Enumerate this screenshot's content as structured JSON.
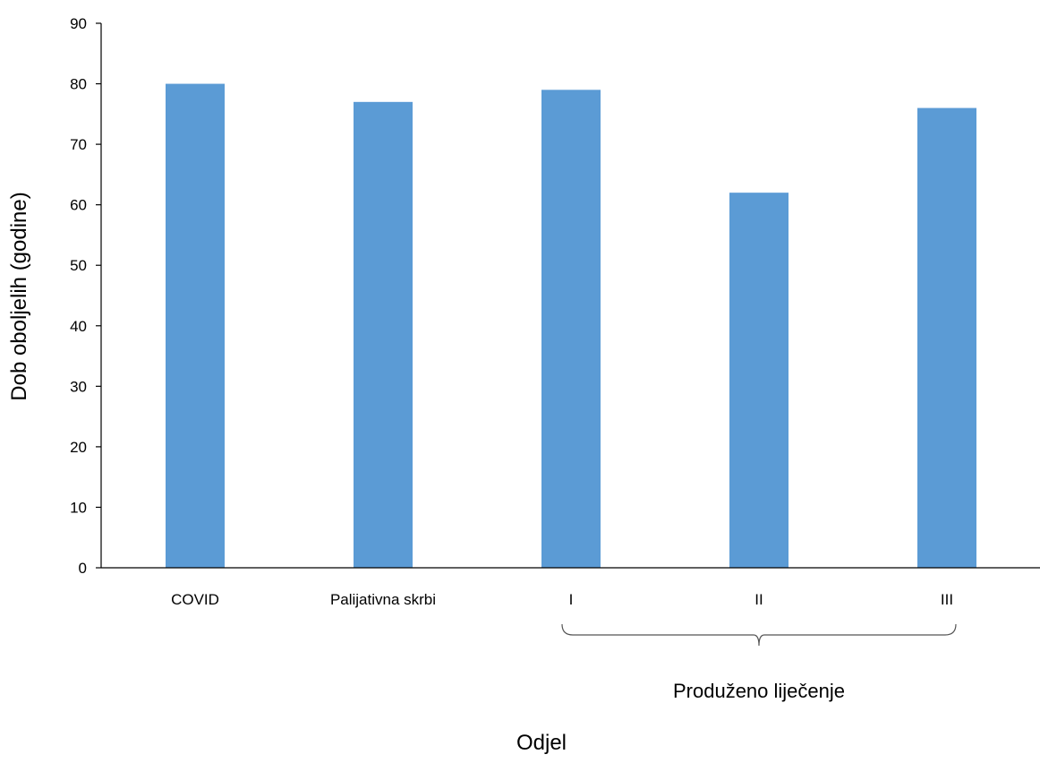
{
  "chart_data": {
    "type": "bar",
    "categories": [
      "COVID",
      "Palijativna skrbi",
      "I",
      "II",
      "III"
    ],
    "values": [
      80,
      77,
      79,
      62,
      76
    ],
    "xlabel": "Odjel",
    "ylabel": "Dob oboljelih (godine)",
    "ylim": [
      0,
      90
    ],
    "yticks": [
      0,
      10,
      20,
      30,
      40,
      50,
      60,
      70,
      80,
      90
    ],
    "grid": false,
    "bar_color": "#5b9bd5",
    "group": {
      "label": "Produženo liječenje",
      "categories": [
        "I",
        "II",
        "III"
      ]
    }
  }
}
